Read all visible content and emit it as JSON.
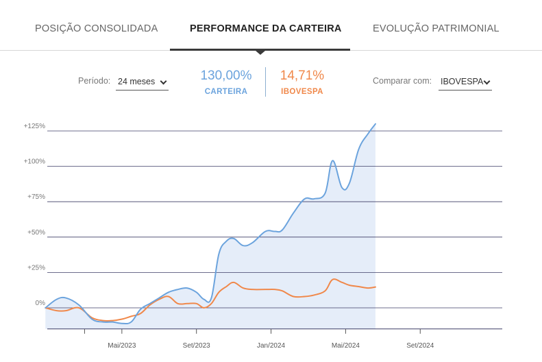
{
  "tabs": [
    {
      "label": "POSIÇÃO CONSOLIDADA",
      "active": false
    },
    {
      "label": "PERFORMANCE DA CARTEIRA",
      "active": true
    },
    {
      "label": "EVOLUÇÃO PATRIMONIAL",
      "active": false
    }
  ],
  "controls": {
    "period_label": "Período:",
    "period_value": "24 meses",
    "compare_label": "Comparar com:",
    "compare_value": "IBOVESPA"
  },
  "metrics": {
    "portfolio": {
      "value": "130,00%",
      "label": "CARTEIRA",
      "color": "#6ba3dd"
    },
    "benchmark": {
      "value": "14,71%",
      "label": "IBOVESPA",
      "color": "#f0884a"
    }
  },
  "chart_data": {
    "type": "area",
    "y_ticks": [
      "+125%",
      "+100%",
      "+75%",
      "+50%",
      "+25%",
      "0%"
    ],
    "y_values": [
      125,
      100,
      75,
      50,
      25,
      0
    ],
    "ylim": [
      -12,
      130
    ],
    "x_ticks": [
      {
        "label": "Mai/2023",
        "x": 4
      },
      {
        "label": "Set/2023",
        "x": 8
      },
      {
        "label": "Jan/2024",
        "x": 12
      },
      {
        "label": "Mai/2024",
        "x": 16
      },
      {
        "label": "Set/2024",
        "x": 20
      }
    ],
    "x_unlabeled_ticks": [
      2
    ],
    "xlim": [
      0,
      24.4
    ],
    "grid": true,
    "series": [
      {
        "name": "CARTEIRA",
        "color": "#6ba3dd",
        "fill": "#e5edf9",
        "points": [
          [
            -0.1,
            0
          ],
          [
            0.5,
            6
          ],
          [
            1.0,
            7
          ],
          [
            1.7,
            2
          ],
          [
            2.4,
            -8
          ],
          [
            3.0,
            -10
          ],
          [
            3.5,
            -10
          ],
          [
            4.0,
            -11
          ],
          [
            4.5,
            -10
          ],
          [
            5.0,
            -1
          ],
          [
            5.5,
            3
          ],
          [
            6.0,
            7
          ],
          [
            6.5,
            11
          ],
          [
            7.0,
            13
          ],
          [
            7.5,
            14
          ],
          [
            8.0,
            11
          ],
          [
            8.4,
            6
          ],
          [
            8.8,
            7
          ],
          [
            9.2,
            38
          ],
          [
            9.6,
            47
          ],
          [
            10.0,
            49
          ],
          [
            10.5,
            44
          ],
          [
            11.0,
            46
          ],
          [
            11.7,
            54
          ],
          [
            12.2,
            54
          ],
          [
            12.6,
            55
          ],
          [
            13.2,
            67
          ],
          [
            13.8,
            77
          ],
          [
            14.3,
            77
          ],
          [
            14.9,
            81
          ],
          [
            15.3,
            104
          ],
          [
            15.8,
            85
          ],
          [
            16.2,
            88
          ],
          [
            16.7,
            112
          ],
          [
            17.2,
            123
          ],
          [
            17.6,
            130
          ]
        ]
      },
      {
        "name": "IBOVESPA",
        "color": "#f0884a",
        "points": [
          [
            -0.1,
            0
          ],
          [
            0.5,
            -2
          ],
          [
            1.0,
            -2
          ],
          [
            1.7,
            0
          ],
          [
            2.4,
            -7
          ],
          [
            3.0,
            -9
          ],
          [
            3.5,
            -9
          ],
          [
            4.0,
            -8
          ],
          [
            4.5,
            -6
          ],
          [
            5.0,
            -4
          ],
          [
            5.5,
            2
          ],
          [
            6.0,
            6
          ],
          [
            6.5,
            8
          ],
          [
            7.0,
            3
          ],
          [
            7.5,
            3
          ],
          [
            8.0,
            3
          ],
          [
            8.4,
            0
          ],
          [
            8.8,
            3
          ],
          [
            9.2,
            11
          ],
          [
            9.6,
            15
          ],
          [
            10.0,
            18
          ],
          [
            10.5,
            14
          ],
          [
            11.0,
            13
          ],
          [
            11.7,
            13
          ],
          [
            12.2,
            13
          ],
          [
            12.6,
            12
          ],
          [
            13.2,
            8
          ],
          [
            13.8,
            8
          ],
          [
            14.3,
            9
          ],
          [
            14.9,
            12
          ],
          [
            15.3,
            20
          ],
          [
            15.8,
            18
          ],
          [
            16.2,
            16
          ],
          [
            16.7,
            15
          ],
          [
            17.2,
            14
          ],
          [
            17.6,
            14.71
          ]
        ]
      }
    ]
  }
}
